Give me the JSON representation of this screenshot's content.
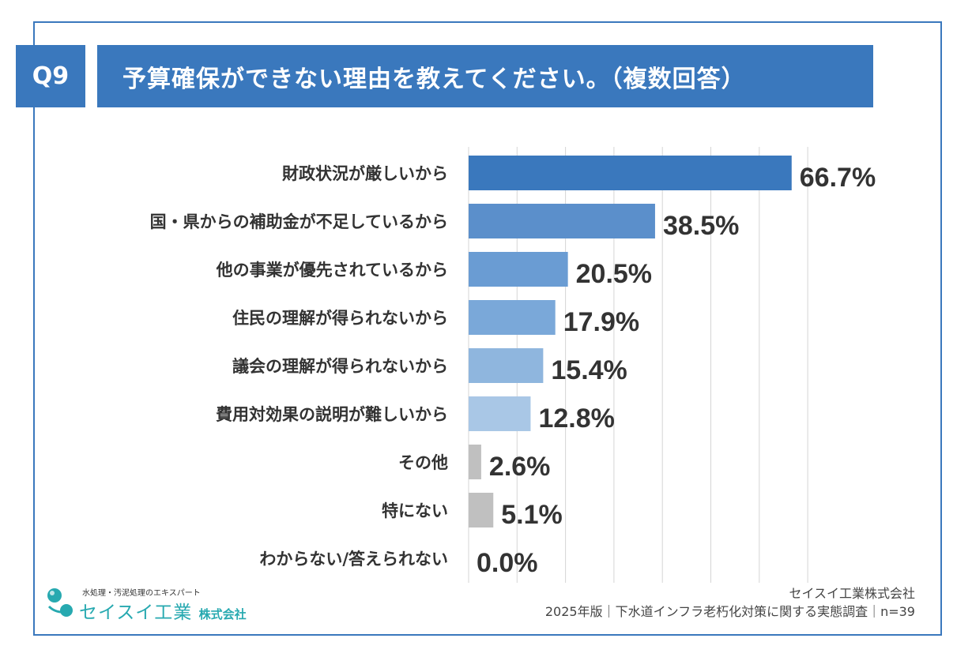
{
  "header": {
    "question_no": "Q9",
    "question_text": "予算確保ができない理由を教えてください。（複数回答）"
  },
  "chart_data": {
    "type": "bar",
    "orientation": "horizontal",
    "categories": [
      "財政状況が厳しいから",
      "国・県からの補助金が不足しているから",
      "他の事業が優先されているから",
      "住民の理解が得られないから",
      "議会の理解が得られないから",
      "費用対効果の説明が難しいから",
      "その他",
      "特にない",
      "わからない/答えられない"
    ],
    "values": [
      66.7,
      38.5,
      20.5,
      17.9,
      15.4,
      12.8,
      2.6,
      5.1,
      0.0
    ],
    "value_labels": [
      "66.7%",
      "38.5%",
      "20.5%",
      "17.9%",
      "15.4%",
      "12.8%",
      "2.6%",
      "5.1%",
      "0.0%"
    ],
    "bar_colors": [
      "#3a78bd",
      "#5b8fcb",
      "#6a9cd3",
      "#7aa8d9",
      "#8fb6de",
      "#a9c7e6",
      "#c0c0c0",
      "#c0c0c0",
      "#c0c0c0"
    ],
    "xlim": [
      0,
      70
    ],
    "grid": true,
    "legend": "none"
  },
  "logo": {
    "tagline": "水処理・汚泥処理のエキスパート",
    "name": "セイスイ工業",
    "suffix": "株式会社",
    "accent_color": "#27a9b0"
  },
  "credit": {
    "company": "セイスイ工業株式会社",
    "source": "2025年版｜下水道インフラ老朽化対策に関する実態調査｜n=39"
  },
  "colors": {
    "brand_blue": "#3a78bd",
    "text": "#333333"
  }
}
